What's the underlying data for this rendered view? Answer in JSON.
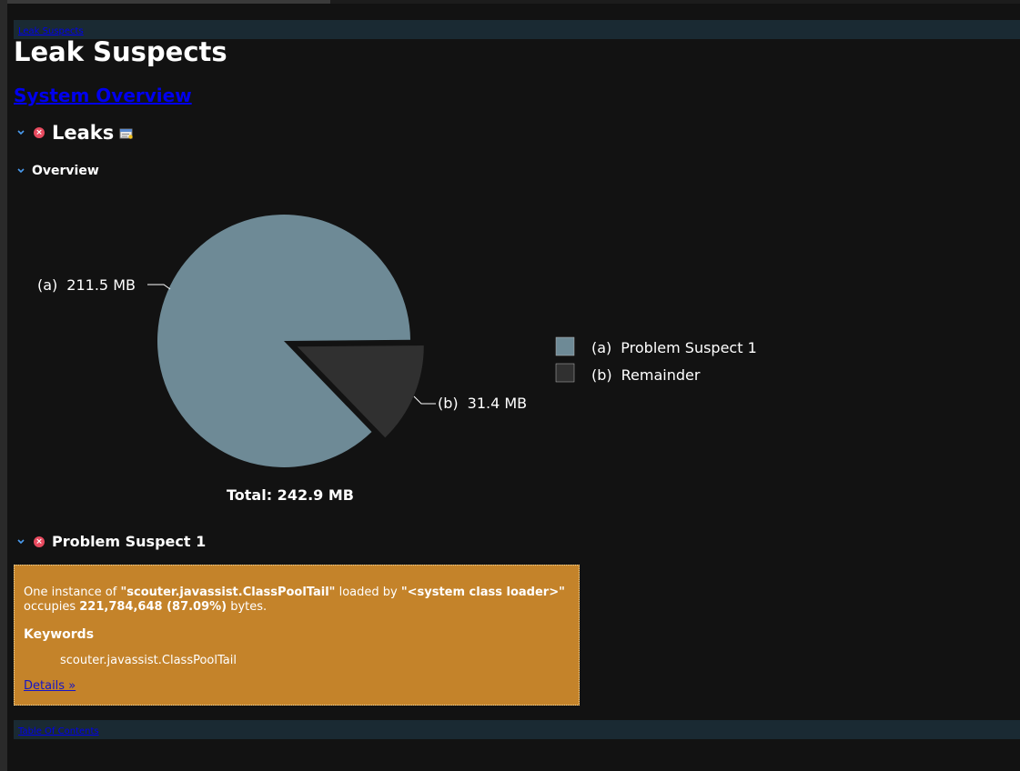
{
  "nav": {
    "top_link": "Leak Suspects",
    "bottom_link": "Table Of Contents"
  },
  "page_title": "Leak Suspects",
  "overview_link": "System Overview",
  "sections": {
    "leaks_title": "Leaks",
    "overview_title": "Overview",
    "suspect_title": "Problem Suspect 1"
  },
  "icons": {
    "collapse": "chevron-down-icon",
    "error": "error-icon",
    "details": "details-icon"
  },
  "colors": {
    "slice_a": "#6e8a96",
    "slice_b": "#303030",
    "suspect_box": "#c4832a",
    "link": "#0000ee"
  },
  "chart_data": {
    "type": "pie",
    "slices": [
      {
        "label": "(a)",
        "name": "Problem Suspect 1",
        "value": 211.5,
        "value_label": "211.5 MB"
      },
      {
        "label": "(b)",
        "name": "Remainder",
        "value": 31.4,
        "value_label": "31.4 MB"
      }
    ],
    "total_label": "Total: 242.9 MB",
    "legend_position": "right"
  },
  "suspect": {
    "desc_prefix": "One instance of ",
    "class_name": "\"scouter.javassist.ClassPoolTail\"",
    "desc_middle": " loaded by ",
    "loader": "\"<system class loader>\"",
    "desc_occupies": " occupies ",
    "size": "221,784,648 (87.09%)",
    "desc_suffix": " bytes.",
    "keywords_title": "Keywords",
    "keyword": "scouter.javassist.ClassPoolTail",
    "details_link": "Details »"
  }
}
